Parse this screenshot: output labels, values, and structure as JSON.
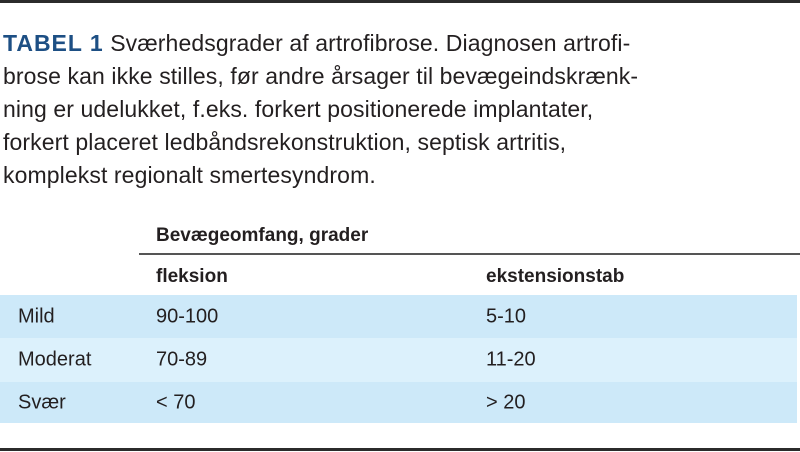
{
  "caption": {
    "label": "TABEL 1",
    "lines": [
      " Sværhedsgrader af artrofibrose. Diagnosen artrofi-",
      "brose kan ikke stilles, før andre årsager til bevægeindskrænk-",
      "ning er udelukket, f.eks. forkert positionerede implantater,",
      "forkert placeret ledbåndsrekonstruktion, septisk artritis,",
      "komplekst regionalt smertesyndrom."
    ]
  },
  "table": {
    "group_header": "Bevægeomfang, grader",
    "columns": [
      "fleksion",
      "ekstensionstab"
    ],
    "rows": [
      {
        "label": "Mild",
        "values": [
          "90-100",
          "5-10"
        ]
      },
      {
        "label": "Moderat",
        "values": [
          "70-89",
          "11-20"
        ]
      },
      {
        "label": "Svær",
        "values": [
          "< 70",
          "> 20"
        ]
      }
    ]
  },
  "colors": {
    "title": "#1d4f84",
    "row_dark": "#cde9f9",
    "row_light": "#dcf1fc"
  }
}
